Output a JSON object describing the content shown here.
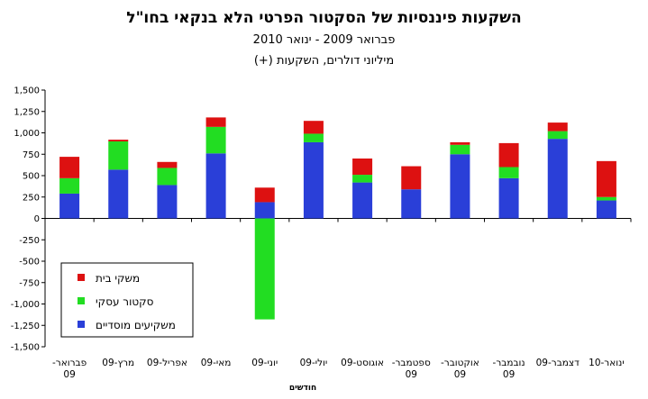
{
  "chart_data": {
    "type": "bar",
    "stacked": true,
    "title": "השקעות פיננסיות של הסקטור הפרטי הלא בנקאי בחו\"ל",
    "subtitle": "פברואר 2009 - ינואר 2010",
    "subtitle2": "מיליוני דולרים, השקעות (+)",
    "xlabel": "חודשים",
    "ylabel": "",
    "ylim": [
      -1500,
      1500
    ],
    "yticks": [
      "1,500",
      "1,250",
      "1,000",
      "750",
      "500",
      "250",
      "0",
      "-250",
      "-500",
      "-750",
      "-1,000",
      "-1,250",
      "-1,500"
    ],
    "categories": [
      [
        "פברואר-",
        "09"
      ],
      [
        "מרץ-09"
      ],
      [
        "אפריל-09"
      ],
      [
        "מאי-09"
      ],
      [
        "יוני-09"
      ],
      [
        "יולי-09"
      ],
      [
        "אוגוסט-09"
      ],
      [
        "ספטמבר-",
        "09"
      ],
      [
        "אוקטובר-",
        "09"
      ],
      [
        "נובמבר-",
        "09"
      ],
      [
        "דצמבר-09"
      ],
      [
        "ינואר-10"
      ]
    ],
    "series": [
      {
        "name": "משקיעים מוסדיים",
        "color": "#2a3fd8",
        "values": [
          290,
          570,
          390,
          760,
          190,
          890,
          420,
          340,
          750,
          470,
          930,
          210
        ]
      },
      {
        "name": "סקטור עסקי",
        "color": "#22dd22",
        "values": [
          180,
          330,
          200,
          310,
          -1180,
          100,
          90,
          0,
          110,
          130,
          90,
          40
        ]
      },
      {
        "name": "משקי בית",
        "color": "#dd1111",
        "values": [
          250,
          20,
          70,
          110,
          170,
          150,
          190,
          270,
          30,
          280,
          100,
          420
        ]
      }
    ],
    "legend_position": "bottom-left",
    "grid": false
  }
}
